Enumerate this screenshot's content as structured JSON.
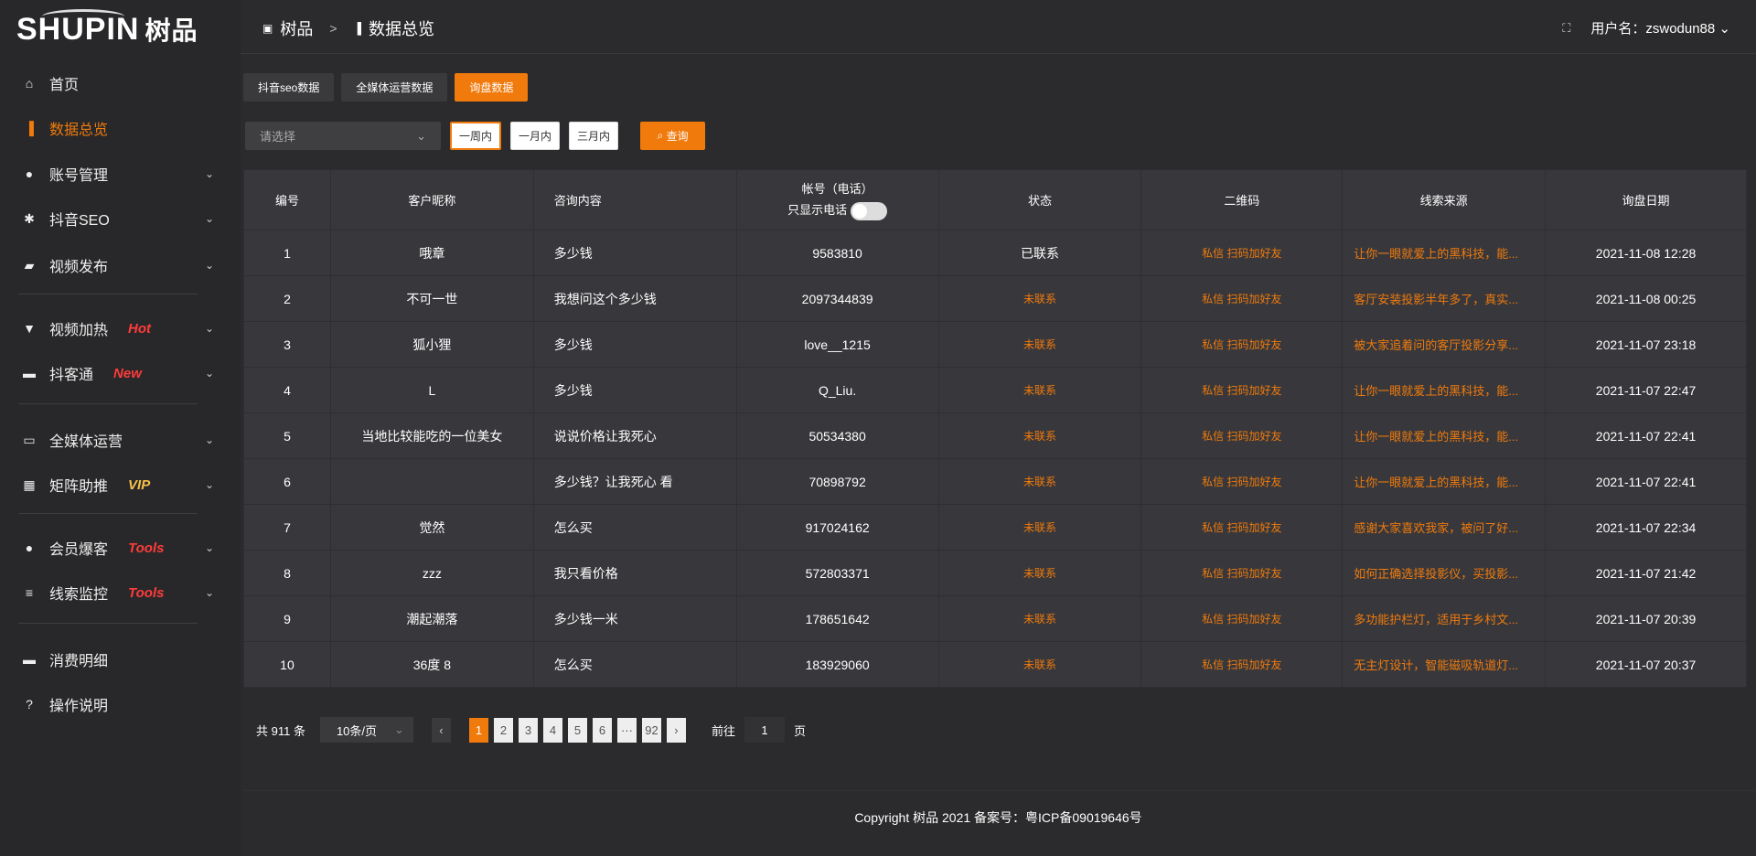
{
  "brand": {
    "logo": "SHUPIN",
    "logo_cn": "树品"
  },
  "sidebar": {
    "items": [
      {
        "label": "首页",
        "icon": "home-icon"
      },
      {
        "label": "数据总览",
        "icon": "bar-chart-icon",
        "active": true
      },
      {
        "label": "账号管理",
        "icon": "user-icon"
      },
      {
        "label": "抖音SEO",
        "icon": "gear-icon"
      },
      {
        "label": "视频发布",
        "icon": "video-camera-icon"
      },
      {
        "label": "视频加热",
        "icon": "heat-icon",
        "badge": "Hot",
        "badge_color": "#ff3b3b"
      },
      {
        "label": "抖客通",
        "icon": "chat-icon",
        "badge": "New",
        "badge_color": "#ff3b3b"
      },
      {
        "label": "全媒体运营",
        "icon": "monitor-icon"
      },
      {
        "label": "矩阵助推",
        "icon": "grid-icon",
        "badge": "VIP",
        "badge_color": "#f5c04a"
      },
      {
        "label": "会员爆客",
        "icon": "user-icon",
        "badge": "Tools",
        "badge_color": "#ff3b3b"
      },
      {
        "label": "线索监控",
        "icon": "sliders-icon",
        "badge": "Tools",
        "badge_color": "#ff3b3b"
      },
      {
        "label": "消费明细",
        "icon": "wallet-icon"
      },
      {
        "label": "操作说明",
        "icon": "help-icon"
      }
    ]
  },
  "header": {
    "breadcrumb": [
      "树品",
      "数据总览"
    ],
    "sep": ">",
    "user": "用户名：zswodun88"
  },
  "tabs": [
    "抖音seo数据",
    "全媒体运营数据",
    "询盘数据"
  ],
  "filters": {
    "select_placeholder": "请选择",
    "ranges": [
      "一周内",
      "一月内",
      "三月内"
    ],
    "query": "查询"
  },
  "table": {
    "headers": [
      "编号",
      "客户昵称",
      "咨询内容",
      "帐号（电话）",
      "状态",
      "二维码",
      "线索来源",
      "询盘日期"
    ],
    "phone_toggle": "只显示电话",
    "qr_text": "私信 扫码加好友",
    "rows": [
      [
        "1",
        "哦章",
        "多少钱",
        "9583810",
        "已联系",
        "让你一眼就爱上的黑科技，能...",
        "2021-11-08 12:28"
      ],
      [
        "2",
        "不可一世",
        "我想问这个多少钱",
        "2097344839",
        "未联系",
        "客厅安装投影半年多了，真实...",
        "2021-11-08 00:25"
      ],
      [
        "3",
        "狐小狸",
        "多少钱",
        "love__1215",
        "未联系",
        "被大家追着问的客厅投影分享...",
        "2021-11-07 23:18"
      ],
      [
        "4",
        "L",
        "多少钱",
        "Q_Liu.",
        "未联系",
        "让你一眼就爱上的黑科技，能...",
        "2021-11-07 22:47"
      ],
      [
        "5",
        "当地比较能吃的一位美女",
        "说说价格让我死心",
        "50534380",
        "未联系",
        "让你一眼就爱上的黑科技，能...",
        "2021-11-07 22:41"
      ],
      [
        "6",
        "",
        "多少钱？让我死心 看",
        "70898792",
        "未联系",
        "让你一眼就爱上的黑科技，能...",
        "2021-11-07 22:41"
      ],
      [
        "7",
        "觉然",
        "怎么买",
        "917024162",
        "未联系",
        "感谢大家喜欢我家，被问了好...",
        "2021-11-07 22:34"
      ],
      [
        "8",
        "zzz",
        "我只看价格",
        "572803371",
        "未联系",
        "如何正确选择投影仪，买投影...",
        "2021-11-07 21:42"
      ],
      [
        "9",
        "潮起潮落",
        "多少钱一米",
        "178651642",
        "未联系",
        "多功能护栏灯，适用于乡村文...",
        "2021-11-07 20:39"
      ],
      [
        "10",
        "36度 8",
        "怎么买",
        "183929060",
        "未联系",
        "无主灯设计，智能磁吸轨道灯...",
        "2021-11-07 20:37"
      ]
    ]
  },
  "pagination": {
    "total": "共 911 条",
    "page_size": "10条/页",
    "pages": [
      "1",
      "2",
      "3",
      "4",
      "5",
      "6",
      "···",
      "92"
    ],
    "current": "1",
    "goto_label": "前往",
    "goto_value": "1",
    "goto_suffix": "页"
  },
  "footer": {
    "copyright": "Copyright 树品 2021 备案号：粤ICP备09019646号"
  },
  "colors": {
    "accent": "#f07a0c",
    "background": "#2b2b2d",
    "table": "#38383c"
  }
}
